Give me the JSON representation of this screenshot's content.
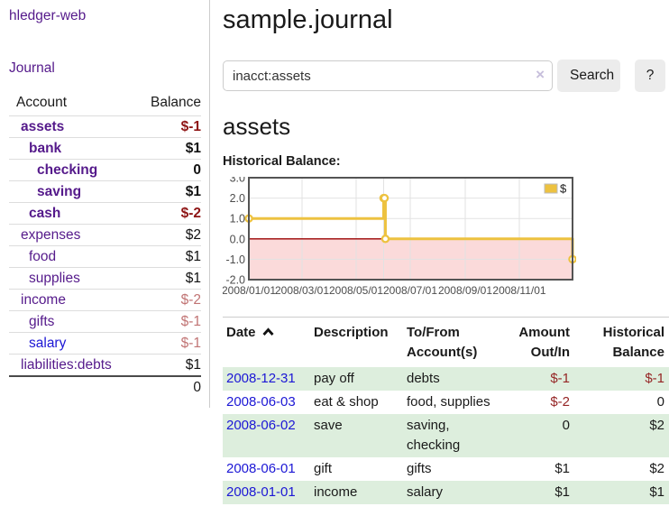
{
  "app": {
    "title": "hledger-web"
  },
  "sidebar": {
    "journal_link": "Journal",
    "accounts_table": {
      "headers": {
        "account": "Account",
        "balance": "Balance"
      },
      "rows": [
        {
          "name": "assets",
          "depth": 1,
          "bold": true,
          "balance": "$-1",
          "balance_style": "neg-strong"
        },
        {
          "name": "bank",
          "depth": 2,
          "bold": true,
          "balance": "$1",
          "balance_style": "pos-strong"
        },
        {
          "name": "checking",
          "depth": 3,
          "bold": true,
          "balance": "0",
          "balance_style": "pos-strong"
        },
        {
          "name": "saving",
          "depth": 3,
          "bold": true,
          "balance": "$1",
          "balance_style": "pos-strong"
        },
        {
          "name": "cash",
          "depth": 2,
          "bold": true,
          "balance": "$-2",
          "balance_style": "neg-strong"
        },
        {
          "name": "expenses",
          "depth": 1,
          "bold": false,
          "balance": "$2",
          "balance_style": "pos"
        },
        {
          "name": "food",
          "depth": 2,
          "bold": false,
          "balance": "$1",
          "balance_style": "pos"
        },
        {
          "name": "supplies",
          "depth": 2,
          "bold": false,
          "balance": "$1",
          "balance_style": "pos"
        },
        {
          "name": "income",
          "depth": 1,
          "bold": false,
          "balance": "$-2",
          "balance_style": "neg-dim"
        },
        {
          "name": "gifts",
          "depth": 2,
          "bold": false,
          "balance": "$-1",
          "balance_style": "neg-dim"
        },
        {
          "name": "salary",
          "depth": 2,
          "bold": false,
          "balance": "$-1",
          "balance_style": "neg-dim",
          "link_style": "blue"
        },
        {
          "name": "liabilities:debts",
          "depth": 1,
          "bold": false,
          "balance": "$1",
          "balance_style": "pos"
        }
      ],
      "total": "0"
    }
  },
  "header": {
    "title": "sample.journal"
  },
  "search": {
    "value": "inacct:assets",
    "clear_icon": "×",
    "button_label": "Search",
    "help_label": "?"
  },
  "account_page": {
    "heading": "assets",
    "chart_label": "Historical Balance:"
  },
  "chart_data": {
    "type": "line",
    "step": true,
    "title": "Historical Balance",
    "legend_label": "$",
    "legend_position": "top-right",
    "grid": true,
    "x_range": [
      "2008-01-01",
      "2008-12-31"
    ],
    "ylim": [
      -2.0,
      3.0
    ],
    "y_ticks": [
      -2.0,
      -1.0,
      0.0,
      1.0,
      2.0,
      3.0
    ],
    "x_ticks": [
      {
        "date": "2008-01-01",
        "label": "2008/01/01"
      },
      {
        "date": "2008-03-01",
        "label": "2008/03/01"
      },
      {
        "date": "2008-05-01",
        "label": "2008/05/01"
      },
      {
        "date": "2008-07-01",
        "label": "2008/07/01"
      },
      {
        "date": "2008-09-01",
        "label": "2008/09/01"
      },
      {
        "date": "2008-11-01",
        "label": "2008/11/01"
      }
    ],
    "x_extra_gridlines": [
      "2008-06-01"
    ],
    "points": [
      [
        "2008-01-01",
        1
      ],
      [
        "2008-06-01",
        2
      ],
      [
        "2008-06-02",
        2
      ],
      [
        "2008-06-03",
        0
      ],
      [
        "2008-12-31",
        -1
      ]
    ]
  },
  "register_table": {
    "columns": {
      "date": "Date",
      "description": "Description",
      "accounts": "To/From Account(s)",
      "amount": "Amount Out/In",
      "balance": "Historical Balance"
    },
    "sort": "ascending",
    "rows": [
      {
        "date": "2008-12-31",
        "description": "pay off",
        "accounts": "debts",
        "amount": "$-1",
        "amount_neg": true,
        "balance": "$-1",
        "balance_neg": true
      },
      {
        "date": "2008-06-03",
        "description": "eat & shop",
        "accounts": "food, supplies",
        "amount": "$-2",
        "amount_neg": true,
        "balance": "0",
        "balance_neg": false
      },
      {
        "date": "2008-06-02",
        "description": "save",
        "accounts": "saving, checking",
        "amount": "0",
        "amount_neg": false,
        "balance": "$2",
        "balance_neg": false
      },
      {
        "date": "2008-06-01",
        "description": "gift",
        "accounts": "gifts",
        "amount": "$1",
        "amount_neg": false,
        "balance": "$2",
        "balance_neg": false
      },
      {
        "date": "2008-01-01",
        "description": "income",
        "accounts": "salary",
        "amount": "$1",
        "amount_neg": false,
        "balance": "$1",
        "balance_neg": false
      }
    ]
  },
  "colors": {
    "link_purple": "#551a8b",
    "link_blue": "#1c17d5",
    "neg_strong": "#8e1414",
    "neg_dim": "#c17474",
    "neg_table": "#952525",
    "row_green": "#ddeedd",
    "divider": "#cccccc",
    "button_bg": "#ececec",
    "chart_yellow": "#edc240",
    "chart_pink": "#fbdada",
    "chart_zero": "#990000",
    "chart_grid": "#e2e2e2",
    "chart_border": "#545454",
    "chart_tick_text": "#4d4d4d"
  }
}
